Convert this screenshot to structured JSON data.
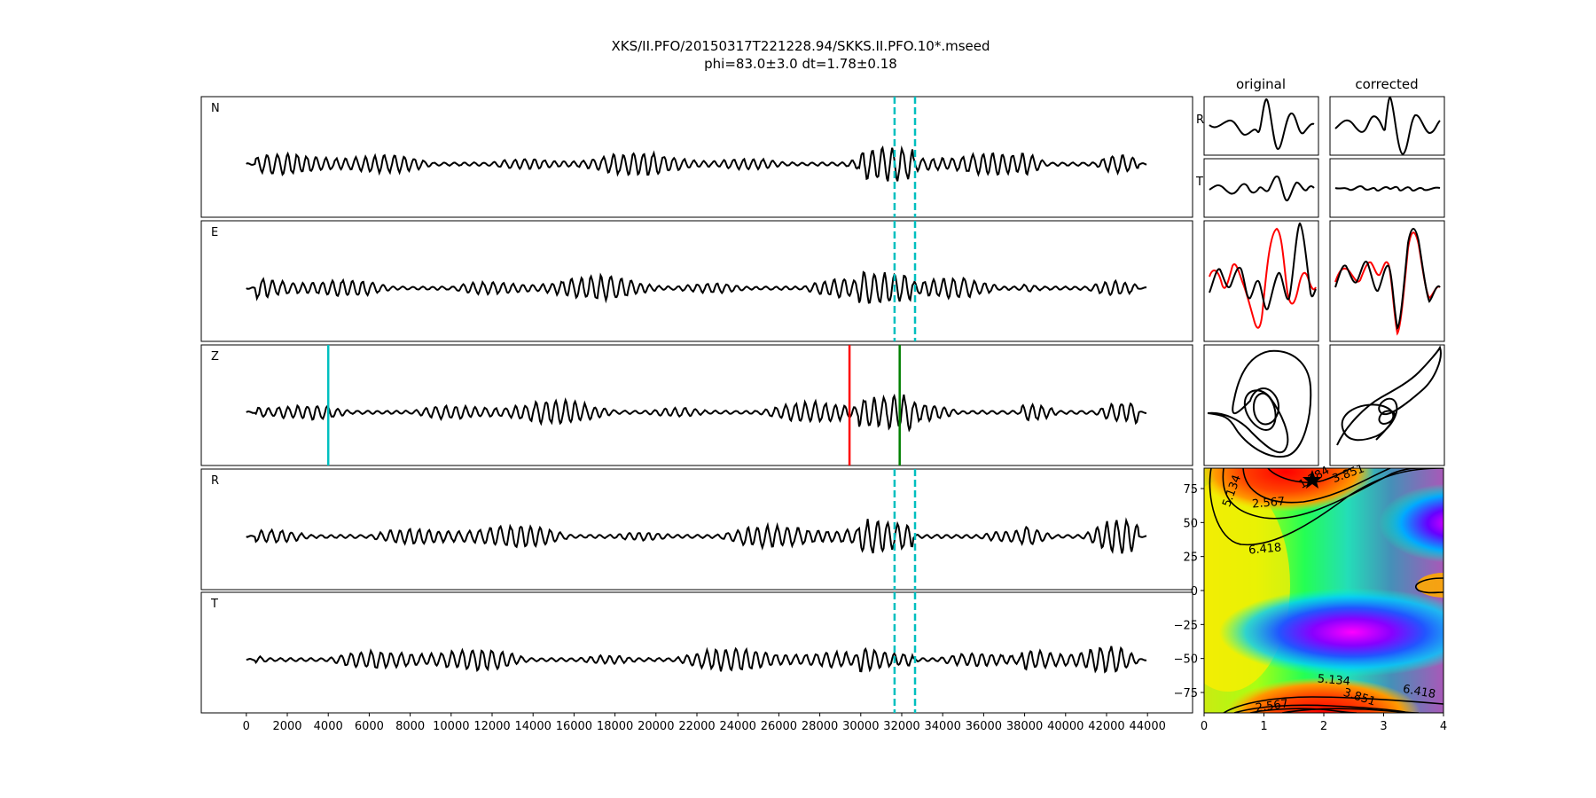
{
  "title_line1": "XKS/II.PFO/20150317T221228.94/SKKS.II.PFO.10*.mseed",
  "title_line2": "phi=83.0±3.0 dt=1.78±0.18",
  "col_original": "original",
  "col_corrected": "corrected",
  "chart_data": [
    {
      "type": "line",
      "panels": [
        "N",
        "E",
        "Z",
        "R",
        "T"
      ],
      "x_ticks": [
        0,
        2000,
        4000,
        6000,
        8000,
        10000,
        12000,
        14000,
        16000,
        18000,
        20000,
        22000,
        24000,
        26000,
        28000,
        30000,
        32000,
        34000,
        36000,
        38000,
        40000,
        42000,
        44000
      ],
      "xlim": [
        -2200,
        46200
      ],
      "trace_x_range": [
        0,
        44000
      ],
      "window_markers": {
        "color": "#00bfbf",
        "style": "dashed",
        "x": [
          31650,
          32650
        ],
        "panels": [
          "N",
          "E",
          "R",
          "T"
        ]
      },
      "z_markers": [
        {
          "x": 4000,
          "color": "#00bfbf"
        },
        {
          "x": 29450,
          "color": "#ff0000"
        },
        {
          "x": 31900,
          "color": "#008000"
        }
      ]
    },
    {
      "type": "line",
      "columns": [
        "original",
        "corrected"
      ],
      "rows": [
        "R",
        "T"
      ],
      "overlay_colors": [
        "#ff0000",
        "#000000"
      ]
    },
    {
      "type": "heatmap",
      "subtype": "contour",
      "x_ticks": [
        0,
        1,
        2,
        3,
        4
      ],
      "y_ticks": [
        75,
        50,
        25,
        0,
        -25,
        -50,
        -75
      ],
      "xlim": [
        0,
        4
      ],
      "ylim": [
        -90,
        90
      ],
      "best_fit": {
        "dt": 1.78,
        "phi": 83.0
      },
      "contour_labels": [
        "1.284",
        "2.567",
        "3.851",
        "5.134",
        "6.418",
        "5.134",
        "3.851",
        "2.567",
        "6.418"
      ]
    }
  ]
}
